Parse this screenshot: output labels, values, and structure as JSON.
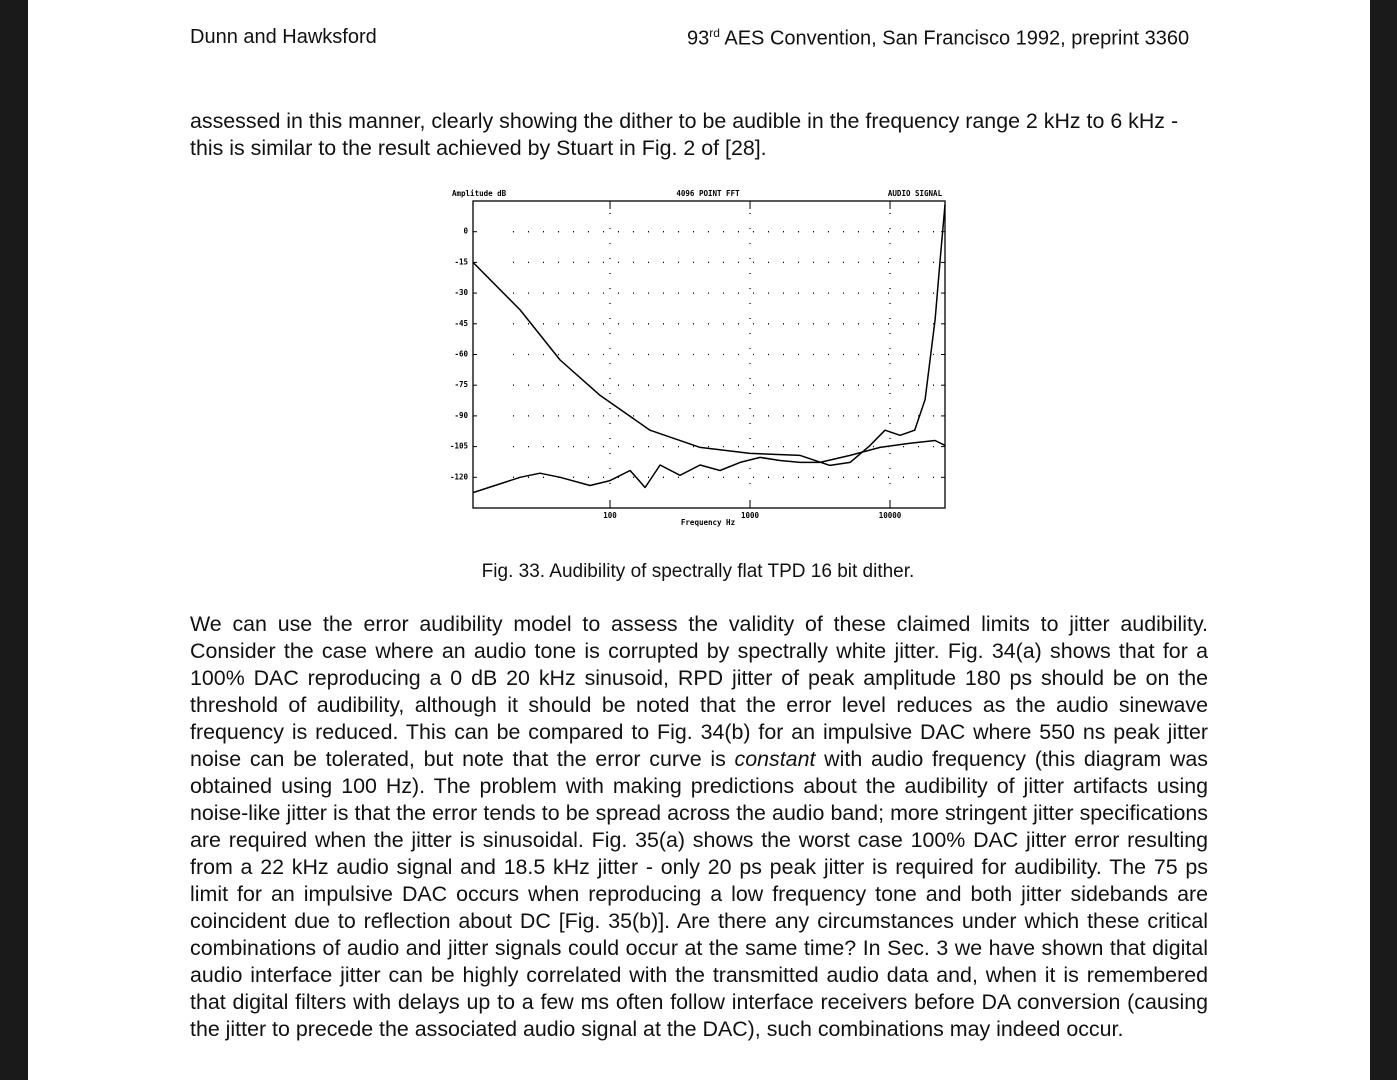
{
  "header": {
    "author": "Dunn and Hawksford",
    "number": "93",
    "sup": "rd",
    "conference": "AES Convention, San Francisco 1992, preprint 3360"
  },
  "paragraphs": [
    "assessed in this manner, clearly showing the dither to be audible in the frequency range 2 kHz to 6 kHz - this is similar to the result achieved by Stuart in Fig. 2 of [28]."
  ],
  "figure": {
    "caption": "Fig. 33. Audibility of spectrally flat TPD 16 bit dither."
  },
  "chart_data": {
    "type": "line",
    "title": "4096 POINT FFT",
    "ylabel": "Amplitude dB",
    "xlabel": "Frequency Hz",
    "annotation": "AUDIO SIGNAL",
    "xscale": "log",
    "grid": true,
    "xlim": [
      10.5,
      24700
    ],
    "ylim": [
      -135,
      15
    ],
    "xticks": [
      100,
      1000,
      10000
    ],
    "yticks": [
      0,
      -15,
      -30,
      -45,
      -60,
      -75,
      -90,
      -105,
      -120
    ],
    "series": [
      {
        "color": "#000000",
        "x": [
          10.5,
          22.8,
          44,
          85,
          193,
          440,
          1000,
          2280,
          3720,
          5190,
          7200,
          9200,
          11800,
          15000,
          17800,
          21000,
          22800,
          24700
        ],
        "values": [
          -15,
          -38.2,
          -62.7,
          -80,
          -97,
          -105.4,
          -108.3,
          -109.3,
          -114.2,
          -112.7,
          -104.4,
          -97,
          -99.5,
          -97,
          -82,
          -43,
          -14,
          13.2
        ]
      },
      {
        "color": "#000000",
        "x": [
          10.5,
          22.8,
          31.6,
          44,
          72,
          100,
          139,
          178,
          228,
          316,
          440,
          610,
          850,
          1180,
          1640,
          2280,
          3160,
          5190,
          8480,
          13900,
          21000,
          24700
        ],
        "values": [
          -127.5,
          -120,
          -118,
          -120,
          -124,
          -121.6,
          -116.7,
          -125,
          -114,
          -119,
          -114,
          -116.7,
          -112.7,
          -110.3,
          -111.8,
          -112.7,
          -112.7,
          -109.3,
          -105.4,
          -103.4,
          -102,
          -104.4
        ]
      }
    ]
  },
  "body": {
    "before": "We can use the error audibility model to assess the validity of these claimed limits to jitter audibility. Consider the case where an audio tone is corrupted by spectrally white jitter. Fig. 34(a) shows that for a 100% DAC reproducing a 0 dB 20 kHz sinusoid, RPD jitter of peak amplitude 180 ps should be on the threshold of audibility, although it should be noted that the error level reduces as the audio sinewave frequency is reduced. This can be compared to Fig. 34(b) for an impulsive DAC where 550 ns peak jitter noise can be tolerated, but note that the error curve is",
    "emphasis": "constant",
    "after": "with audio frequency (this diagram was obtained using 100 Hz). The problem with making predictions about the audibility of jitter artifacts using noise-like jitter is that the error tends to be spread across the audio band; more stringent jitter specifications are required when the jitter is sinusoidal. Fig. 35(a) shows the worst case 100% DAC jitter error resulting from a 22 kHz audio signal and 18.5 kHz jitter - only 20 ps peak jitter is required for audibility. The 75 ps limit for an impulsive DAC occurs when reproducing a low frequency tone and both jitter sidebands are coincident due to reflection about DC [Fig. 35(b)]. Are there any circumstances under which these critical combinations of audio and jitter signals could occur at the same time? In Sec. 3 we have shown that digital audio interface jitter can be highly correlated with the transmitted audio data and, when it is remembered that digital filters with delays up to a few ms often follow interface receivers before DA conversion (causing the jitter to precede the associated audio signal at the DAC), such combinations may indeed occur."
  }
}
